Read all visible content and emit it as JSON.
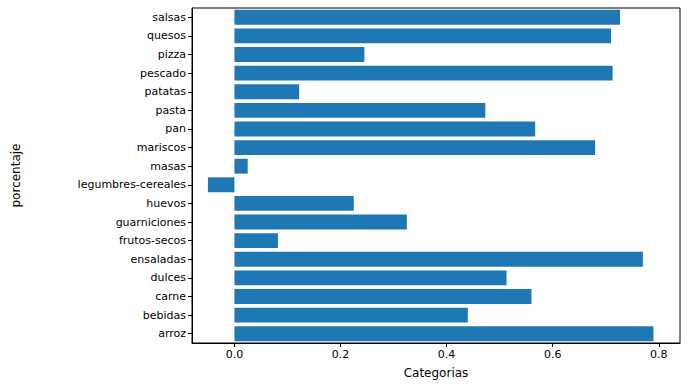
{
  "chart_data": {
    "type": "bar",
    "orientation": "horizontal",
    "xlabel": "Categorias",
    "ylabel": "porcentaje",
    "categories": [
      "arroz",
      "bebidas",
      "carne",
      "dulces",
      "ensaladas",
      "frutos-secos",
      "guarniciones",
      "huevos",
      "legumbres-cereales",
      "masas",
      "mariscos",
      "pan",
      "pasta",
      "patatas",
      "pescado",
      "pizza",
      "quesos",
      "salsas"
    ],
    "values": [
      0.79,
      0.44,
      0.56,
      0.513,
      0.77,
      0.082,
      0.325,
      0.225,
      -0.05,
      0.025,
      0.68,
      0.567,
      0.473,
      0.122,
      0.713,
      0.245,
      0.71,
      0.727
    ],
    "color": "#1f77b4",
    "xlim": [
      -0.08,
      0.84
    ],
    "xticks": [
      {
        "value": 0,
        "label": "0.0"
      },
      {
        "value": 0.2,
        "label": "0.2"
      },
      {
        "value": 0.4,
        "label": "0.4"
      },
      {
        "value": 0.6,
        "label": "0.6"
      },
      {
        "value": 0.8,
        "label": "0.8"
      }
    ],
    "grid": false
  }
}
